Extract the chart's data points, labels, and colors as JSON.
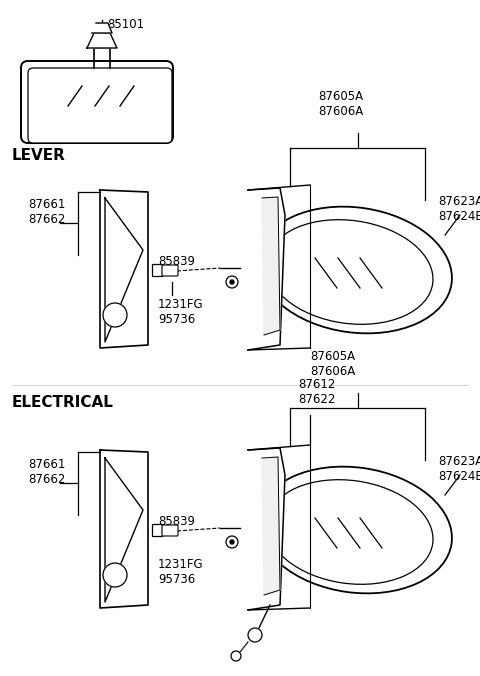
{
  "bg_color": "#ffffff",
  "lc": "#000000",
  "tc": "#000000",
  "lever_label": "LEVER",
  "electrical_label": "ELECTRICAL",
  "s1_87605A": "87605A\n87606A",
  "s1_87623A": "87623A\n87624B",
  "s1_87661": "87661\n87662",
  "s1_85839": "85839",
  "s1_1231FG": "1231FG\n95736",
  "s2_87605A": "87605A\n87606A",
  "s2_87612": "87612\n87622",
  "s2_87623A": "87623A\n87624B",
  "s2_87661": "87661\n87662",
  "s2_85839": "85839",
  "s2_1231FG": "1231FG\n95736",
  "label_85101": "85101"
}
